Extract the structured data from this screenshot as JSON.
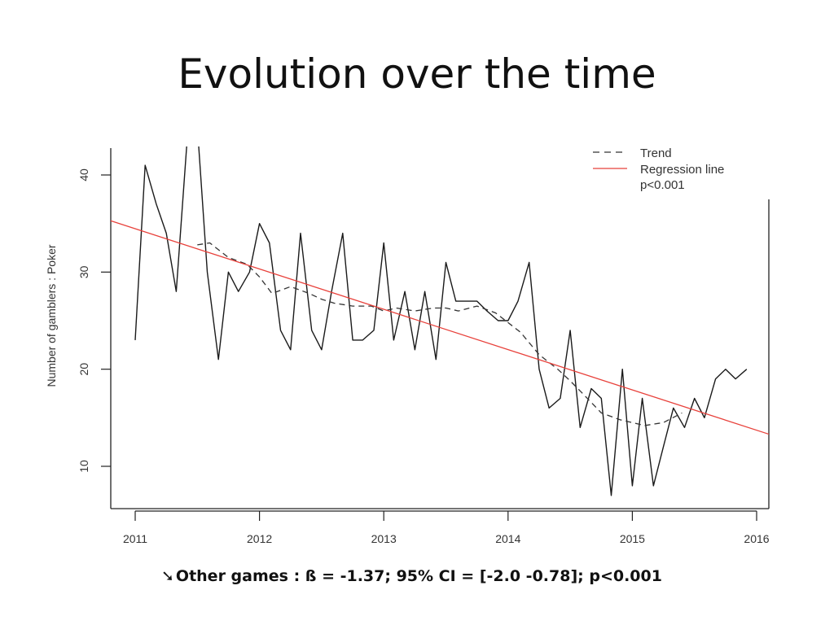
{
  "slide": {
    "title": "Evolution over the time",
    "caption_icon": "arrow-down-right-icon",
    "caption_arrow": "➘",
    "caption": "Other games : ß = -1.37; 95% CI = [-2.0 -0.78]; p<0.001"
  },
  "chart_data": {
    "type": "line",
    "title": "",
    "xlabel": "",
    "ylabel": "Number of gamblers : Poker",
    "xlim": [
      2011,
      2016
    ],
    "ylim": [
      5.5,
      43
    ],
    "x_ticks": [
      2011,
      2012,
      2013,
      2014,
      2015,
      2016
    ],
    "y_ticks": [
      10,
      20,
      30,
      40
    ],
    "grid": false,
    "legend_position": "top-right",
    "legend": [
      "Trend",
      "Regression line",
      "p<0.001"
    ],
    "colors": {
      "observed": "#1a1a1a",
      "trend": "#333333",
      "regression": "#e8413b"
    },
    "series": [
      {
        "style": "solid",
        "x": [
          2011.0,
          2011.08,
          2011.17,
          2011.25,
          2011.33,
          2011.42,
          2011.5,
          2011.58,
          2011.67,
          2011.75,
          2011.83,
          2011.92,
          2012.0,
          2012.08,
          2012.17,
          2012.25,
          2012.33,
          2012.42,
          2012.5,
          2012.58,
          2012.67,
          2012.75,
          2012.83,
          2012.92,
          2013.0,
          2013.08,
          2013.17,
          2013.25,
          2013.33,
          2013.42,
          2013.5,
          2013.58,
          2013.67,
          2013.75,
          2013.83,
          2013.92,
          2014.0,
          2014.08,
          2014.17,
          2014.25,
          2014.33,
          2014.42,
          2014.5,
          2014.58,
          2014.67,
          2014.75,
          2014.83,
          2014.92,
          2015.0,
          2015.08,
          2015.17,
          2015.25,
          2015.33,
          2015.42,
          2015.5,
          2015.58,
          2015.67,
          2015.75,
          2015.83,
          2015.92
        ],
        "y": [
          23,
          41,
          37,
          34,
          28,
          44,
          45,
          30,
          21,
          30,
          28,
          30,
          35,
          33,
          24,
          22,
          34,
          24,
          22,
          28,
          34,
          23,
          23,
          24,
          33,
          23,
          28,
          22,
          28,
          21,
          31,
          27,
          27,
          27,
          26,
          25,
          25,
          27,
          31,
          20,
          16,
          17,
          24,
          14,
          18,
          17,
          7,
          20,
          8,
          17,
          8,
          12,
          16,
          14,
          17,
          15,
          19,
          20,
          19,
          20
        ]
      },
      {
        "name": "Trend",
        "style": "dashed",
        "x": [
          2011.5,
          2011.6,
          2011.75,
          2011.9,
          2012.0,
          2012.1,
          2012.25,
          2012.4,
          2012.5,
          2012.6,
          2012.75,
          2012.9,
          2013.0,
          2013.1,
          2013.25,
          2013.4,
          2013.5,
          2013.6,
          2013.75,
          2013.9,
          2014.0,
          2014.1,
          2014.25,
          2014.4,
          2014.5,
          2014.6,
          2014.75,
          2014.9,
          2015.0,
          2015.1,
          2015.25,
          2015.4
        ],
        "y": [
          32.8,
          33.0,
          31.5,
          30.8,
          29.5,
          27.8,
          28.5,
          27.8,
          27.2,
          26.8,
          26.5,
          26.5,
          26.0,
          26.3,
          26.0,
          26.3,
          26.3,
          26.0,
          26.5,
          25.8,
          24.8,
          23.8,
          21.5,
          20.0,
          18.8,
          17.5,
          15.5,
          14.8,
          14.5,
          14.2,
          14.5,
          15.5
        ]
      },
      {
        "name": "Regression line",
        "style": "solid",
        "x": [
          2010.8,
          2016.1
        ],
        "y": [
          35.3,
          13.3
        ]
      }
    ]
  }
}
